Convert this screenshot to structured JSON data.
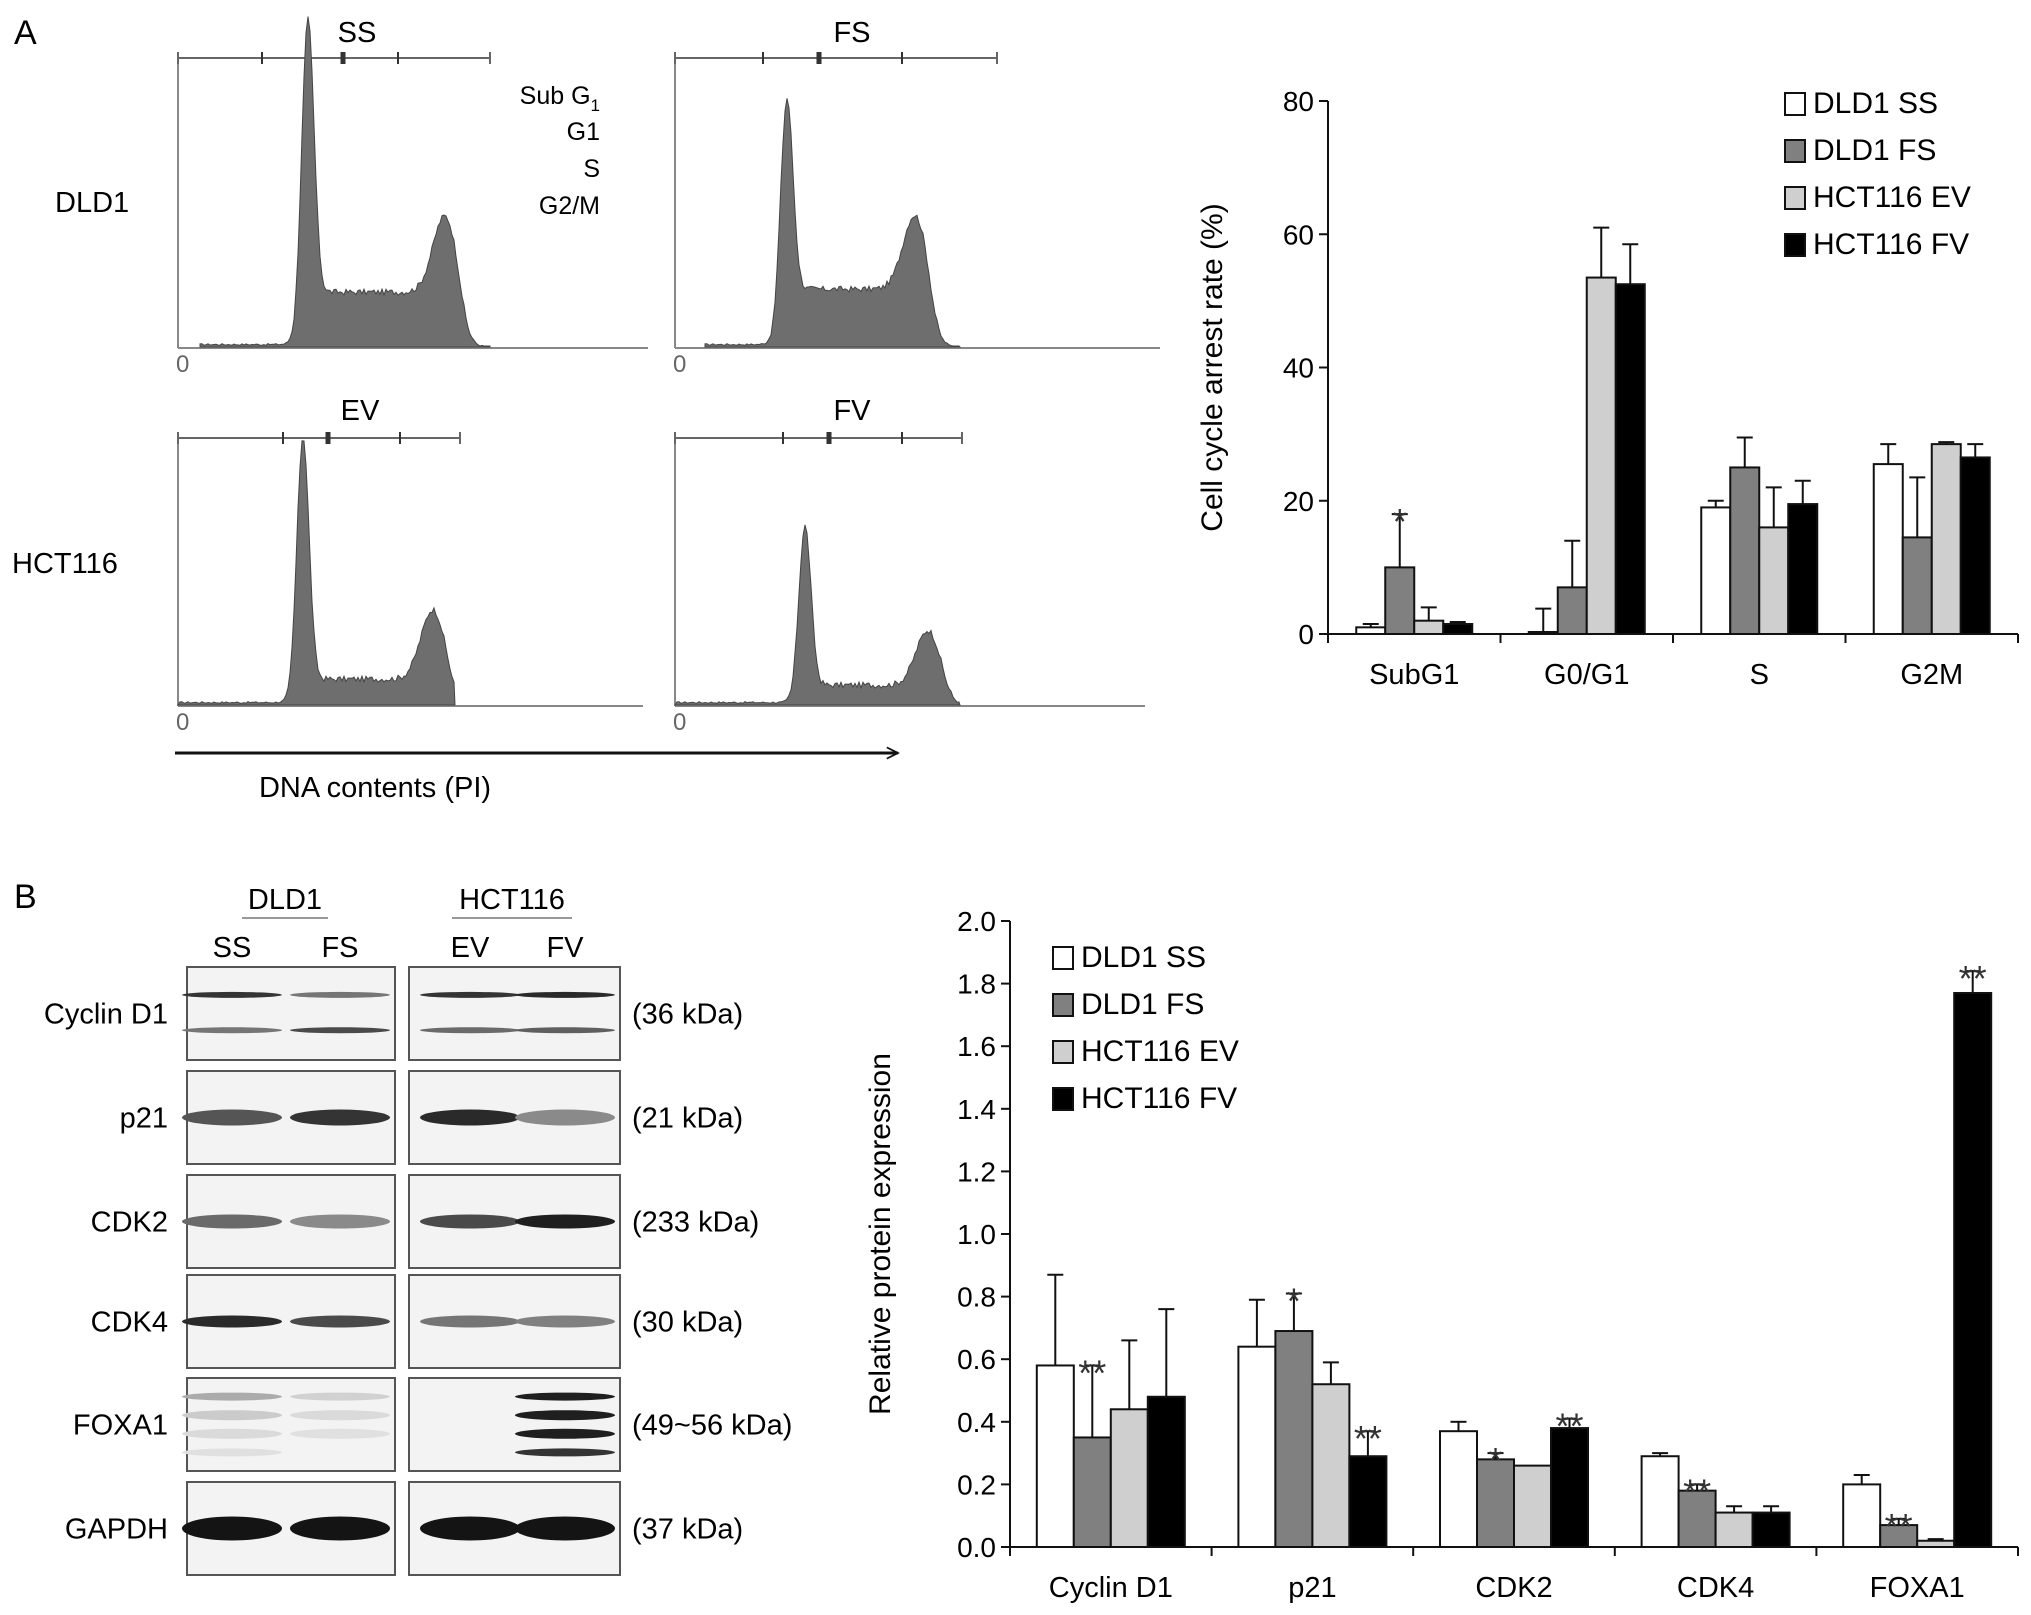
{
  "panels": {
    "a_label": "A",
    "b_label": "B"
  },
  "flow": {
    "rows": [
      "DLD1",
      "HCT116"
    ],
    "cols_top": [
      "SS",
      "FS"
    ],
    "cols_bottom": [
      "EV",
      "FV"
    ],
    "legend_lines": [
      "Sub G",
      "G1",
      "S",
      "G2/M"
    ],
    "legend_sub": "1",
    "zero_label": "0",
    "xlabel": "DNA contents (PI)"
  },
  "western": {
    "group_left": "DLD1",
    "group_right": "HCT116",
    "lanes": [
      "SS",
      "FS",
      "EV",
      "FV"
    ],
    "proteins": [
      {
        "name": "Cyclin D1",
        "size": "(36 kDa)"
      },
      {
        "name": "p21",
        "size": "(21 kDa)"
      },
      {
        "name": "CDK2",
        "size": "(233 kDa)"
      },
      {
        "name": "CDK4",
        "size": "(30 kDa)"
      },
      {
        "name": "FOXA1",
        "size": "(49~56 kDa)"
      },
      {
        "name": "GAPDH",
        "size": "(37 kDa)"
      }
    ]
  },
  "colors": {
    "dld1_ss": "#ffffff",
    "dld1_fs": "#808080",
    "hct116_ev": "#cfcfcf",
    "hct116_fv": "#000000",
    "histogram": "#6e6e6e"
  },
  "chart_data": [
    {
      "id": "cell_cycle",
      "type": "bar",
      "title": "",
      "xlabel": "",
      "ylabel": "Cell cycle arrest rate (%)",
      "ylim": [
        0,
        80
      ],
      "yticks": [
        0,
        20,
        40,
        60,
        80
      ],
      "ytick_labels": [
        "0",
        "20",
        "40",
        "60",
        "80"
      ],
      "categories": [
        "SubG1",
        "G0/G1",
        "S",
        "G2M"
      ],
      "legend_position": "top-right",
      "series": [
        {
          "name": "DLD1 SS",
          "values": [
            1,
            0.3,
            19,
            25.5
          ],
          "errors": [
            0.5,
            3.5,
            1,
            3
          ]
        },
        {
          "name": "DLD1 FS",
          "values": [
            10,
            7,
            25,
            14.5
          ],
          "errors": [
            8,
            7,
            4.5,
            9
          ]
        },
        {
          "name": "HCT116 EV",
          "values": [
            2,
            53.5,
            16,
            28.5
          ],
          "errors": [
            2,
            7.5,
            6,
            0.3
          ]
        },
        {
          "name": "HCT116 FV",
          "values": [
            1.5,
            52.5,
            19.5,
            26.5
          ],
          "errors": [
            0.3,
            6,
            3.5,
            2
          ]
        }
      ],
      "annotations": [
        {
          "category": "SubG1",
          "series": "DLD1 FS",
          "text": "*"
        }
      ]
    },
    {
      "id": "protein_expression",
      "type": "bar",
      "title": "",
      "xlabel": "",
      "ylabel": "Relative protein expression",
      "ylim": [
        0,
        2.0
      ],
      "yticks": [
        0,
        0.2,
        0.4,
        0.6,
        0.8,
        1.0,
        1.2,
        1.4,
        1.6,
        1.8,
        2.0
      ],
      "ytick_labels": [
        "0.0",
        "0.2",
        "0.4",
        "0.6",
        "0.8",
        "1.0",
        "1.2",
        "1.4",
        "1.6",
        "1.8",
        "2.0"
      ],
      "categories": [
        "Cyclin D1",
        "p21",
        "CDK2",
        "CDK4",
        "FOXA1"
      ],
      "legend_position": "top-left",
      "series": [
        {
          "name": "DLD1 SS",
          "values": [
            0.58,
            0.64,
            0.37,
            0.29,
            0.2
          ],
          "errors": [
            0.29,
            0.15,
            0.03,
            0.01,
            0.03
          ]
        },
        {
          "name": "DLD1 FS",
          "values": [
            0.35,
            0.69,
            0.28,
            0.18,
            0.07
          ],
          "errors": [
            0.23,
            0.12,
            0.02,
            0.02,
            0.02
          ]
        },
        {
          "name": "HCT116 EV",
          "values": [
            0.44,
            0.52,
            0.26,
            0.11,
            0.02
          ],
          "errors": [
            0.22,
            0.07,
            0.0,
            0.02,
            0.005
          ]
        },
        {
          "name": "HCT116 FV",
          "values": [
            0.48,
            0.29,
            0.38,
            0.11,
            1.77
          ],
          "errors": [
            0.28,
            0.08,
            0.03,
            0.02,
            0.07
          ]
        }
      ],
      "annotations": [
        {
          "category": "Cyclin D1",
          "series": "DLD1 FS",
          "text": "**"
        },
        {
          "category": "p21",
          "series": "DLD1 FS",
          "text": "*"
        },
        {
          "category": "p21",
          "series": "HCT116 FV",
          "text": "**"
        },
        {
          "category": "CDK2",
          "series": "DLD1 FS",
          "text": "*"
        },
        {
          "category": "CDK2",
          "series": "HCT116 FV",
          "text": "**"
        },
        {
          "category": "CDK4",
          "series": "DLD1 FS",
          "text": "**"
        },
        {
          "category": "FOXA1",
          "series": "DLD1 FS",
          "text": "**"
        },
        {
          "category": "FOXA1",
          "series": "HCT116 FV",
          "text": "**"
        }
      ]
    }
  ]
}
